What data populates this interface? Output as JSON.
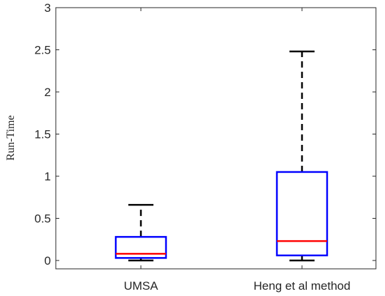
{
  "chart_data": {
    "type": "box",
    "title": "",
    "xlabel": "",
    "ylabel": "Run-Time",
    "ylim": [
      0,
      3
    ],
    "yticks": [
      "0",
      "0.5",
      "1",
      "1.5",
      "2",
      "2.5",
      "3"
    ],
    "grid": false,
    "categories": [
      "UMSA",
      "Heng et al method"
    ],
    "boxes": [
      {
        "category": "UMSA",
        "whisker_low": 0.0,
        "q1": 0.03,
        "median": 0.08,
        "q3": 0.28,
        "whisker_high": 0.66
      },
      {
        "category": "Heng et al method",
        "whisker_low": 0.0,
        "q1": 0.06,
        "median": 0.23,
        "q3": 1.05,
        "whisker_high": 2.48
      }
    ],
    "colors": {
      "box": "#0000ff",
      "median": "#ff0000",
      "whisker": "#000000",
      "axis": "#262626"
    }
  }
}
